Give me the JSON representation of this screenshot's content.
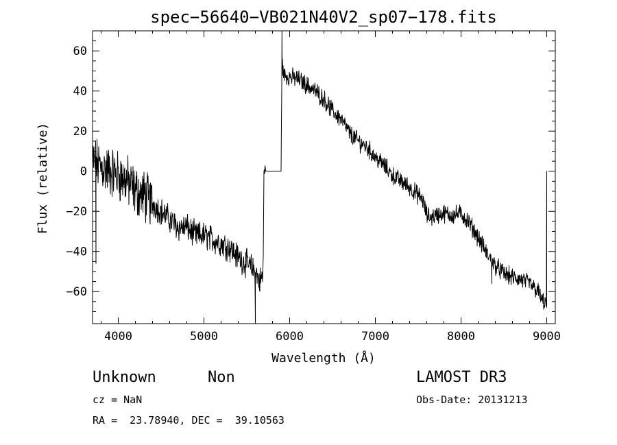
{
  "chart_data": {
    "type": "line",
    "title": "spec−56640−VB021N40V2_sp07−178.fits",
    "xlabel": "Wavelength (Å)",
    "ylabel": "Flux (relative)",
    "xlim": [
      3700,
      9100
    ],
    "ylim": [
      -76,
      70
    ],
    "xticks": [
      {
        "value": 4000,
        "label": "4000"
      },
      {
        "value": 5000,
        "label": "5000"
      },
      {
        "value": 6000,
        "label": "6000"
      },
      {
        "value": 7000,
        "label": "7000"
      },
      {
        "value": 8000,
        "label": "8000"
      },
      {
        "value": 9000,
        "label": "9000"
      }
    ],
    "yticks": [
      {
        "value": 60,
        "label": "60"
      },
      {
        "value": 40,
        "label": "40"
      },
      {
        "value": 20,
        "label": "20"
      },
      {
        "value": 0,
        "label": "0"
      },
      {
        "value": -20,
        "label": "−20"
      },
      {
        "value": -40,
        "label": "−40"
      },
      {
        "value": -60,
        "label": "−60"
      }
    ],
    "series": [
      {
        "name": "flux",
        "noise": 4.5,
        "x": [
          3700,
          3800,
          3900,
          4000,
          4100,
          4200,
          4300,
          4400,
          4500,
          4600,
          4700,
          4800,
          4900,
          5000,
          5100,
          5200,
          5300,
          5400,
          5500,
          5600,
          5650,
          5690,
          5700,
          5720,
          5900,
          5910,
          5930,
          6000,
          6100,
          6200,
          6300,
          6400,
          6500,
          6600,
          6700,
          6800,
          6900,
          7000,
          7100,
          7200,
          7300,
          7400,
          7500,
          7550,
          7600,
          7650,
          7700,
          7800,
          7900,
          8000,
          8100,
          8200,
          8300,
          8400,
          8500,
          8600,
          8700,
          8800,
          8900,
          8950,
          9000
        ],
        "y": [
          5,
          2,
          0,
          -2,
          -5,
          -10,
          -12,
          -16,
          -20,
          -24,
          -28,
          -28,
          -32,
          -32,
          -34,
          -36,
          -38,
          -43,
          -46,
          -50,
          -55,
          -52,
          0,
          0,
          0,
          55,
          48,
          47,
          46,
          43,
          40,
          36,
          30,
          26,
          19,
          15,
          12,
          7,
          3,
          -2,
          -5,
          -8,
          -12,
          -14,
          -22,
          -23,
          -22,
          -21,
          -22,
          -21,
          -26,
          -33,
          -41,
          -47,
          -51,
          -53,
          -54,
          -56,
          -60,
          -65,
          -66
        ]
      }
    ],
    "spikes": [
      {
        "x": 3740,
        "y": -46
      },
      {
        "x": 5600,
        "y": -75
      },
      {
        "x": 5910,
        "y": 70
      },
      {
        "x": 8360,
        "y": -56
      },
      {
        "x": 9000,
        "y": 0
      }
    ]
  },
  "info": {
    "object_class": "Unknown",
    "object_subclass": "Non",
    "survey": "LAMOST DR3",
    "redshift": "cz = NaN",
    "obs_date": "Obs-Date: 20131213",
    "coordinates": "RA =  23.78940, DEC =  39.10563"
  }
}
